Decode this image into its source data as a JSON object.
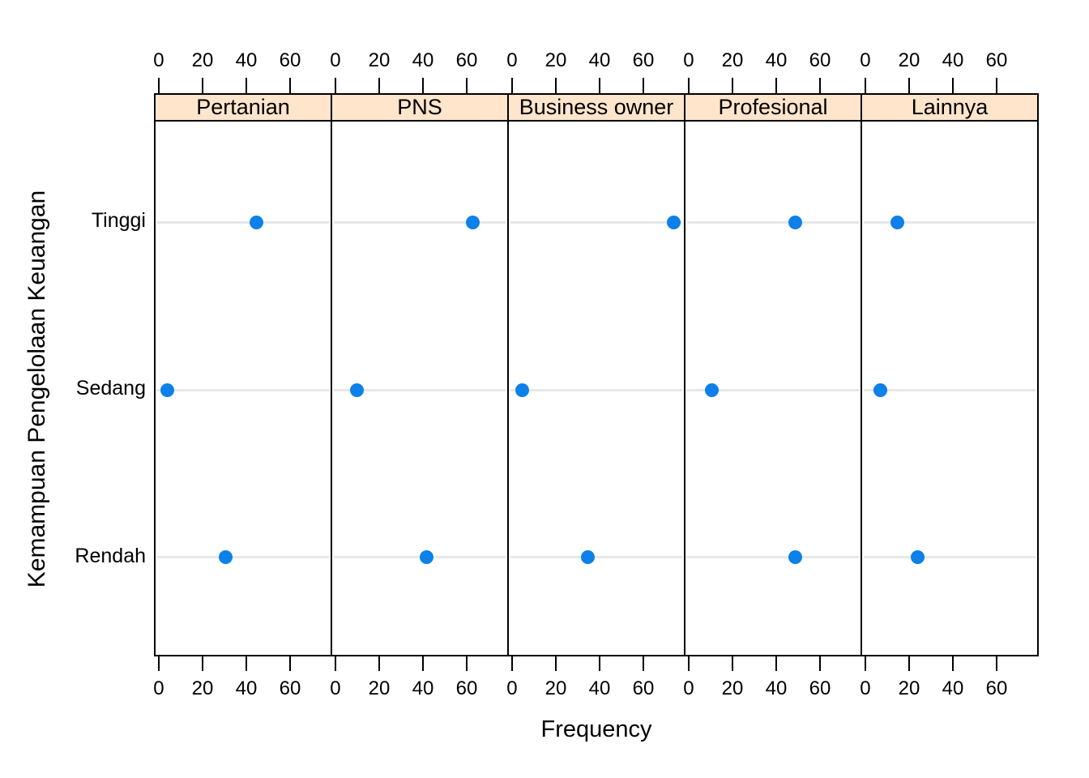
{
  "figure": {
    "xlabel": "Frequency",
    "ylabel": "Kemampuan Pengelolaan Keuangan",
    "colors": {
      "dot": "#0d80e9",
      "strip_fill": "#ffe5cc",
      "reference_line": "#e7e7e7",
      "border": "#000000",
      "background": "#ffffff"
    }
  },
  "chart_data": {
    "type": "scatter",
    "subtype": "lattice-dotplot",
    "title": "",
    "xlabel": "Frequency",
    "ylabel": "Kemampuan Pengelolaan Keuangan",
    "panels": [
      "Pertanian",
      "PNS",
      "Business owner",
      "Profesional",
      "Lainnya"
    ],
    "y_categories": [
      "Tinggi",
      "Sedang",
      "Rendah"
    ],
    "x_ticks": [
      0,
      20,
      40,
      60
    ],
    "xlim": [
      -2.2,
      78.5
    ],
    "axis_sides": [
      "top",
      "bottom"
    ],
    "grid": "one light horizontal reference line per category row",
    "legend": "none",
    "series": [
      {
        "name": "Pertanian",
        "values": [
          44,
          3,
          30
        ]
      },
      {
        "name": "PNS",
        "values": [
          62,
          9,
          41
        ]
      },
      {
        "name": "Business owner",
        "values": [
          73,
          4,
          34
        ]
      },
      {
        "name": "Profesional",
        "values": [
          48,
          10,
          48
        ]
      },
      {
        "name": "Lainnya",
        "values": [
          14,
          6,
          23
        ]
      }
    ],
    "series_value_order": [
      "Tinggi",
      "Sedang",
      "Rendah"
    ]
  }
}
